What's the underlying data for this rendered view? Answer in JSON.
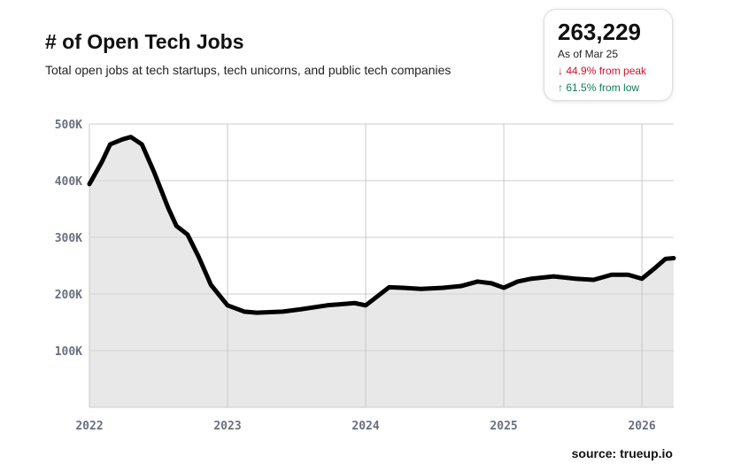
{
  "chart_data": {
    "type": "area",
    "title": "# of Open Tech Jobs",
    "subtitle": "Total open jobs at tech startups, tech unicorns, and public tech companies",
    "xlabel": "",
    "ylabel": "",
    "xlim": [
      2022,
      2026.23
    ],
    "ylim": [
      0,
      500000
    ],
    "x_ticks": [
      {
        "value": 2022,
        "label": "2022"
      },
      {
        "value": 2023,
        "label": "2023"
      },
      {
        "value": 2024,
        "label": "2024"
      },
      {
        "value": 2025,
        "label": "2025"
      },
      {
        "value": 2026,
        "label": "2026"
      }
    ],
    "y_ticks": [
      {
        "value": 100000,
        "label": "100K"
      },
      {
        "value": 200000,
        "label": "200K"
      },
      {
        "value": 300000,
        "label": "300K"
      },
      {
        "value": 400000,
        "label": "400K"
      },
      {
        "value": 500000,
        "label": "500K"
      }
    ],
    "grid": true,
    "series": [
      {
        "name": "Open tech jobs",
        "color": "#000000",
        "fill": "#e8e8e8",
        "x": [
          2022.0,
          2022.09,
          2022.15,
          2022.24,
          2022.3,
          2022.38,
          2022.47,
          2022.57,
          2022.63,
          2022.71,
          2022.79,
          2022.88,
          2023.0,
          2023.12,
          2023.21,
          2023.4,
          2023.53,
          2023.72,
          2023.92,
          2024.0,
          2024.08,
          2024.17,
          2024.27,
          2024.4,
          2024.56,
          2024.69,
          2024.81,
          2024.91,
          2025.0,
          2025.1,
          2025.2,
          2025.36,
          2025.52,
          2025.65,
          2025.78,
          2025.9,
          2026.0,
          2026.1,
          2026.17,
          2026.23
        ],
        "y": [
          394000,
          433000,
          464000,
          473000,
          477000,
          464000,
          414000,
          352000,
          320000,
          305000,
          266000,
          216000,
          180000,
          169000,
          167000,
          169000,
          173000,
          180000,
          184000,
          180000,
          195000,
          212000,
          211000,
          209000,
          211000,
          214000,
          222000,
          219000,
          211000,
          222000,
          227000,
          231000,
          227000,
          225000,
          234000,
          234000,
          227000,
          247000,
          262000,
          263229
        ]
      }
    ]
  },
  "kpi": {
    "value": "263,229",
    "as_of": "As of Mar 25",
    "from_peak": "44.9% from peak",
    "from_low": "61.5% from low",
    "down_color": "#d0112b",
    "up_color": "#0e7d55"
  },
  "source": "source: trueup.io"
}
